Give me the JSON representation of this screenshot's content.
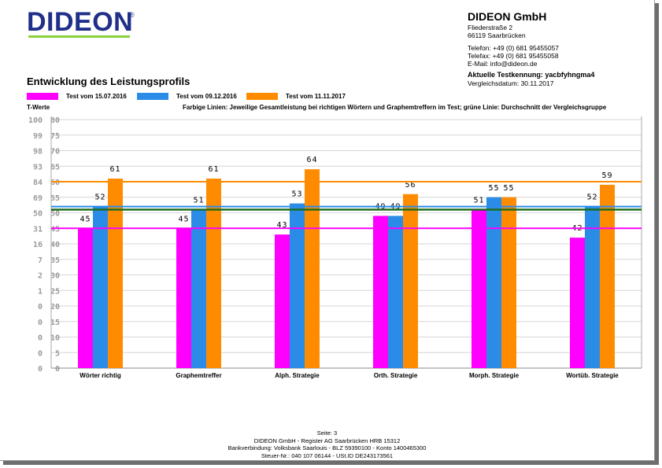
{
  "header": {
    "logo_text": "DIDEON",
    "logo_mark": "®",
    "company": {
      "name": "DIDEON GmbH",
      "street": "Fliederstraße 2",
      "city": "66119 Saarbrücken",
      "phone": "Telefon: +49 (0) 681 95455057",
      "fax": "Telefax: +49 (0) 681 95455058",
      "email": "E-Mail: info@dideon.de",
      "test_id": "Aktuelle Testkennung: yacbfyhngma4",
      "compare_date": "Vergleichsdatum: 30.11.2017"
    }
  },
  "colors": {
    "series1": "#ff00ff",
    "series2": "#2b8ce8",
    "series3": "#ff8c00",
    "average_line": "#1e6b1e",
    "logo": "#1f2f8a",
    "logo_underline": "#8cd13c"
  },
  "chart_data": {
    "type": "bar",
    "title": "Entwicklung des Leistungsprofils",
    "ylabel": "T-Werte",
    "caption": "Farbige Linien: Jeweilige Gesamtleistung bei richtigen Wörtern und Graphemtreffern im Test; grüne Linie: Durchschnitt der Vergleichsgruppe",
    "categories": [
      "Wörter richtig",
      "Graphemtreffer",
      "Alph. Strategie",
      "Orth. Strategie",
      "Morph. Strategie",
      "Wortüb. Strategie"
    ],
    "series": [
      {
        "name": "Test vom 15.07.2016",
        "values": [
          45,
          45,
          43,
          49,
          51,
          42
        ],
        "total_line": 45
      },
      {
        "name": "Test vom 09.12.2016",
        "values": [
          52,
          51,
          53,
          49,
          55,
          52
        ],
        "total_line": 52
      },
      {
        "name": "Test vom 11.11.2017",
        "values": [
          61,
          61,
          64,
          56,
          55,
          59
        ],
        "total_line": 60
      }
    ],
    "average_line": 51,
    "ylim": [
      0,
      80
    ],
    "y_ticks": [
      {
        "value": 80,
        "label_pr": "100",
        "label_t": "80"
      },
      {
        "value": 75,
        "label_pr": "99",
        "label_t": "75"
      },
      {
        "value": 70,
        "label_pr": "98",
        "label_t": "70"
      },
      {
        "value": 65,
        "label_pr": "93",
        "label_t": "65"
      },
      {
        "value": 60,
        "label_pr": "84",
        "label_t": "60"
      },
      {
        "value": 55,
        "label_pr": "69",
        "label_t": "55"
      },
      {
        "value": 50,
        "label_pr": "50",
        "label_t": "50"
      },
      {
        "value": 45,
        "label_pr": "31",
        "label_t": "45"
      },
      {
        "value": 40,
        "label_pr": "16",
        "label_t": "40"
      },
      {
        "value": 35,
        "label_pr": "7",
        "label_t": "35"
      },
      {
        "value": 30,
        "label_pr": "2",
        "label_t": "30"
      },
      {
        "value": 25,
        "label_pr": "1",
        "label_t": "25"
      },
      {
        "value": 20,
        "label_pr": "0",
        "label_t": "20"
      },
      {
        "value": 15,
        "label_pr": "0",
        "label_t": "15"
      },
      {
        "value": 10,
        "label_pr": "0",
        "label_t": "10"
      },
      {
        "value": 5,
        "label_pr": "0",
        "label_t": "5"
      },
      {
        "value": 0,
        "label_pr": "0",
        "label_t": "0"
      }
    ],
    "grid": "horizontal",
    "legend_position": "top-left"
  },
  "footer": {
    "page": "Seite: 3",
    "register": "DIDEON GmbH - Register AG Saarbrücken HRB 15312",
    "bank": "Bankverbindung: Volksbank Saarlouis - BLZ 59390100 - Konto 1400465300",
    "tax": "Steuer-Nr.: 040 107 06144 - USt.ID DE243173561"
  }
}
